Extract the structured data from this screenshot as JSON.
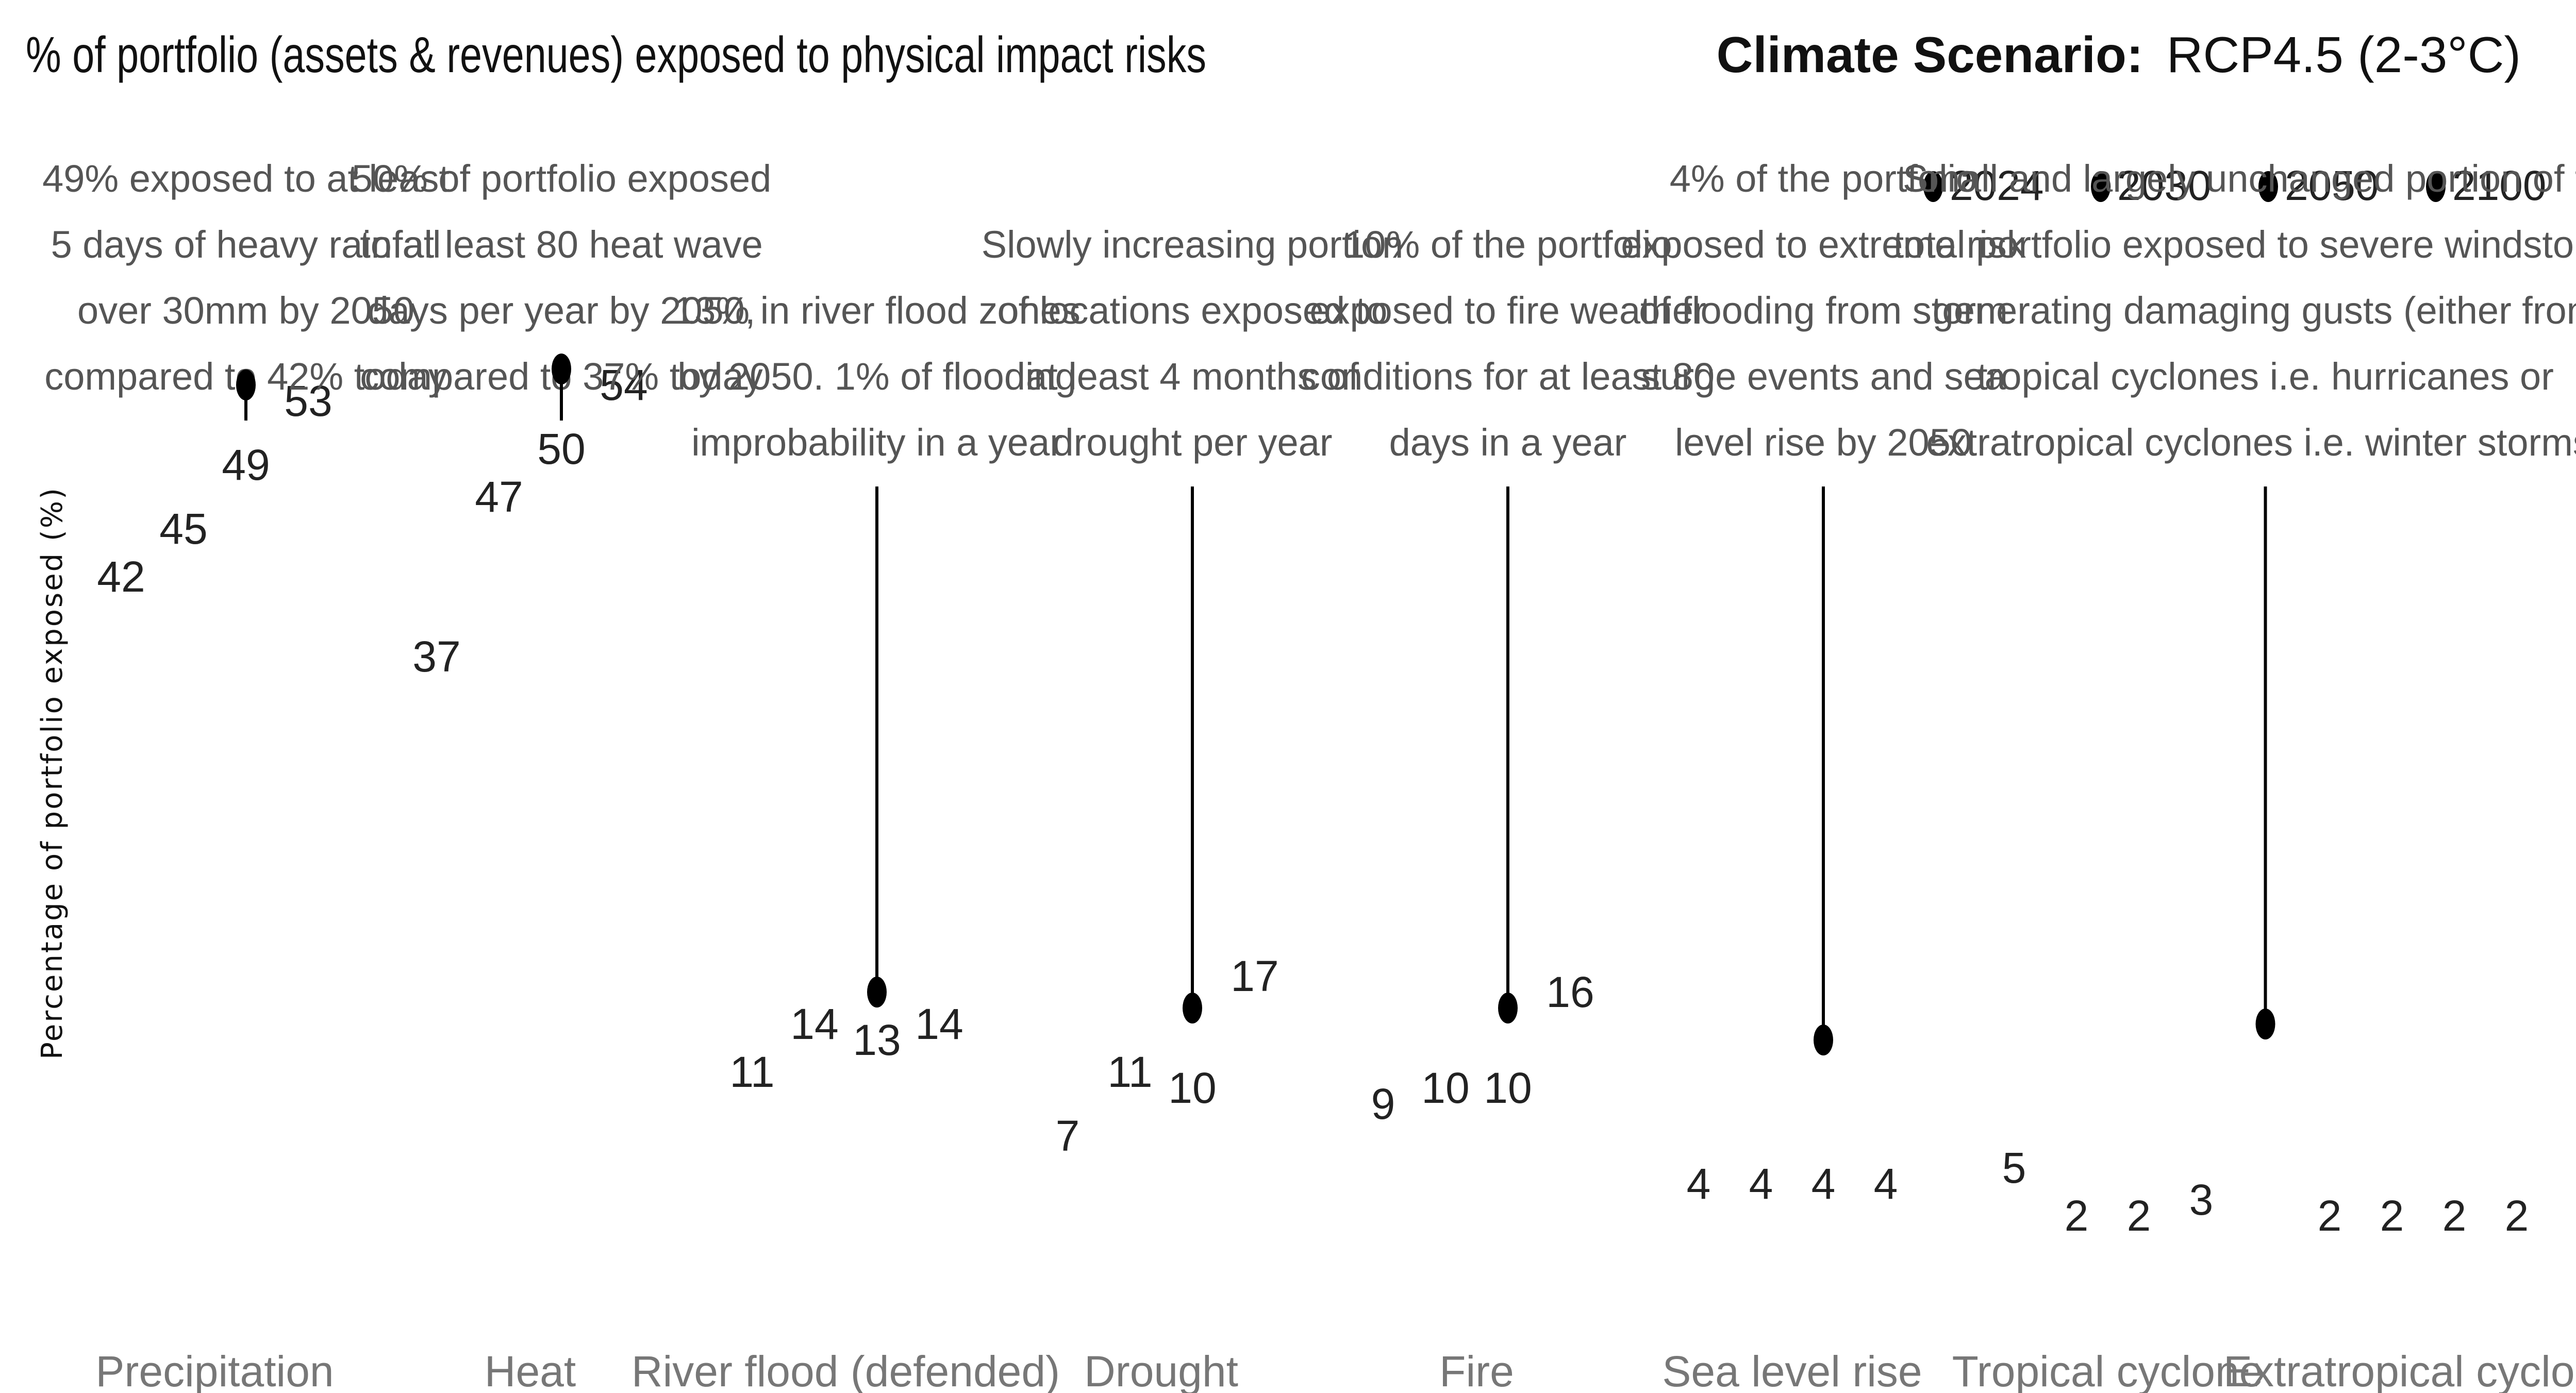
{
  "chart_data": {
    "type": "scatter",
    "title": "% of portfolio (assets & revenues) exposed to physical impact risks",
    "scenario_label": "Climate Scenario:",
    "scenario_value": "RCP4.5 (2-3°C)",
    "ylabel": "Percentage of portfolio exposed (%)",
    "xlabel": "",
    "legend_position": "top-right",
    "series_names": [
      "2024",
      "2030",
      "2050",
      "2100"
    ],
    "marker_color": "#000000",
    "categories": [
      {
        "name": "Precipitation",
        "values": [
          42,
          45,
          49,
          53
        ],
        "annotation": [
          "49% exposed to at least",
          "5 days of heavy rainfall",
          "over 30mm by 2050",
          "compared to 42% today"
        ],
        "marker_value": 53
      },
      {
        "name": "Heat",
        "values": [
          37,
          47,
          50,
          54
        ],
        "annotation": [
          "50% of portfolio exposed",
          "to at least 80 heat wave",
          "days per year by 2050,",
          "compared to 37% today"
        ],
        "marker_value": 54
      },
      {
        "name": "River flood (defended)",
        "values": [
          11,
          14,
          13,
          14
        ],
        "annotation": [
          "13% in river flood zones",
          "by 2050. 1% of flooding",
          "improbability in a year"
        ],
        "marker_value": 15
      },
      {
        "name": "Drought",
        "values": [
          7,
          11,
          10,
          17
        ],
        "annotation": [
          "Slowly increasing portion",
          "of locations exposed to",
          "at least 4 months of",
          "drought per year"
        ],
        "marker_value": 14
      },
      {
        "name": "Fire",
        "values": [
          9,
          10,
          10,
          16
        ],
        "annotation": [
          "10% of the portfolio",
          "exposed to fire weather",
          "conditions for at least 80",
          "days in a year"
        ],
        "marker_value": 14
      },
      {
        "name": "Sea level rise",
        "values": [
          4,
          4,
          4,
          4
        ],
        "annotation": [
          "4% of the portfolio",
          "exposed to extreme risk",
          "of flooding from storm",
          "surge events and sea",
          "level rise by 2050"
        ],
        "marker_value": 12
      },
      {
        "name": "Tropical cyclone",
        "values": [
          5,
          2,
          2,
          3
        ],
        "annotation": [],
        "marker_value": null
      },
      {
        "name": "Extratropical cyclone",
        "values": [
          2,
          2,
          2,
          2
        ],
        "annotation": [],
        "marker_value": null
      }
    ],
    "shared_annotation": {
      "lines": [
        "Small and largely unchanged portion of the",
        "total portfolio exposed to severe windstorms",
        "generating damaging gusts (either from",
        "tropical cyclones i.e. hurricanes or",
        "extratropical cyclones i.e. winter storms)"
      ],
      "marker_value": 13
    }
  }
}
